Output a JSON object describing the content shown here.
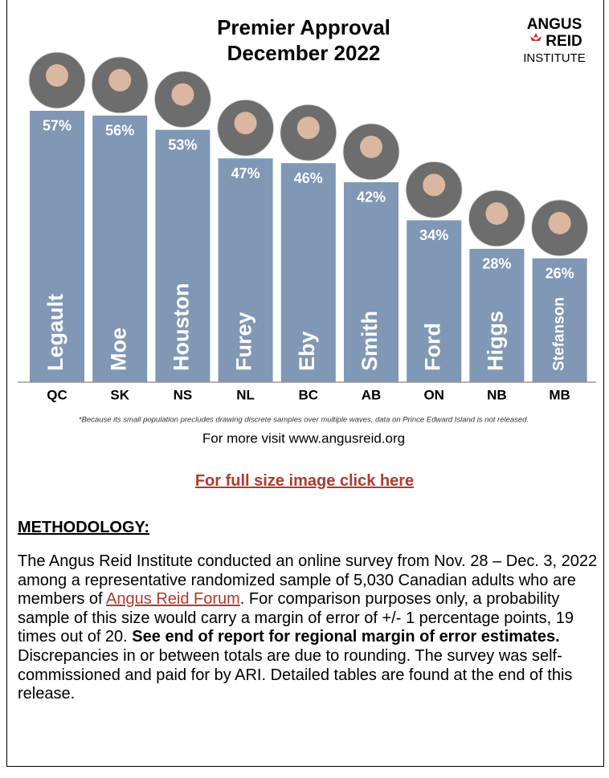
{
  "chart_data": {
    "type": "bar",
    "title": "Premier Approval",
    "subtitle": "December 2022",
    "categories": [
      "QC",
      "SK",
      "NS",
      "NL",
      "BC",
      "AB",
      "ON",
      "NB",
      "MB"
    ],
    "names": [
      "Legault",
      "Moe",
      "Houston",
      "Furey",
      "Eby",
      "Smith",
      "Ford",
      "Higgs",
      "Stefanson"
    ],
    "values": [
      57,
      56,
      53,
      47,
      46,
      42,
      34,
      28,
      26
    ],
    "value_labels": [
      "57%",
      "56%",
      "53%",
      "47%",
      "46%",
      "42%",
      "34%",
      "28%",
      "26%"
    ],
    "color": "#8097b5",
    "footnote": "*Because its small population precludes drawing discrete samples over multiple waves, data on Prince Edward Island is not released.",
    "source": "For more visit www.angusreid.org"
  },
  "logo": {
    "line1": "ANGUS",
    "line2": "REID",
    "line3": "INSTITUTE"
  },
  "link": "For full size image click here",
  "methodology": {
    "heading": "METHODOLOGY:",
    "text1": "The Angus Reid Institute conducted an online survey from Nov. 28 – Dec. 3, 2022 among a representative randomized sample of 5,030 Canadian adults who are members of ",
    "link": "Angus Reid Forum",
    "text2": ". For comparison purposes only, a probability sample of this size would carry a margin of error of +/- 1 percentage points, 19 times out of 20. ",
    "bold": "See end of report for regional margin of error estimates.",
    "text3": " Discrepancies in or between totals are due to rounding. The survey was self-commissioned and paid for by ARI. Detailed tables are found at the end of this release."
  }
}
